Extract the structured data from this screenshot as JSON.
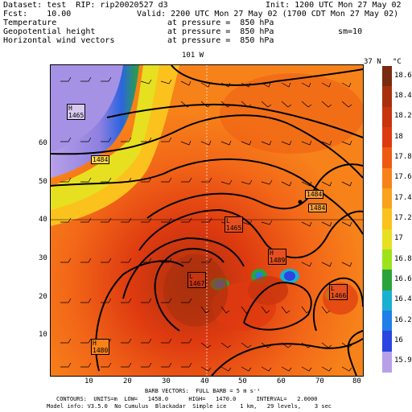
{
  "header": {
    "dataset": "Dataset: test  RIP: rip20020527 d3",
    "init": "Init: 1200 UTC Mon 27 May 02",
    "fcst": "Fcst:    10.00",
    "valid": "Valid: 2200 UTC Mon 27 May 02 (1700 CDT Mon 27 May 02)",
    "row1_label": "Temperature",
    "row1_at": "at pressure =  850 hPa",
    "row2_label": "Geopotential height",
    "row2_at": "at pressure =  850 hPa",
    "row2_sm": "sm=10",
    "row3_label": "Horizontal wind vectors",
    "row3_at": "at pressure =  850 hPa"
  },
  "map": {
    "top_label_lon": "101 W",
    "top_label_lat": "37 N",
    "x_ticks": [
      "10",
      "20",
      "30",
      "40",
      "50",
      "60",
      "70",
      "80"
    ],
    "y_ticks": [
      "10",
      "20",
      "30",
      "40",
      "50",
      "60"
    ],
    "height_labels": [
      {
        "text": "H\n1465"
      },
      {
        "text": "1484"
      },
      {
        "text": "1484"
      },
      {
        "text": "1484"
      },
      {
        "text": "L\n1465"
      },
      {
        "text": "H\n1489"
      },
      {
        "text": "L\n1467"
      },
      {
        "text": "L\n1466"
      },
      {
        "text": "H\n1480"
      }
    ]
  },
  "colorbar": {
    "unit": "°C",
    "labels": [
      "18.6",
      "18.4",
      "18.2",
      "18",
      "17.8",
      "17.6",
      "17.4",
      "17.2",
      "17",
      "16.8",
      "16.6",
      "16.4",
      "16.2",
      "16",
      "15.9"
    ],
    "colors": [
      "#7a2a10",
      "#a8300e",
      "#c8340e",
      "#de3a10",
      "#ee5a12",
      "#f7821a",
      "#f9a21c",
      "#fbc21e",
      "#e6e020",
      "#9ee21a",
      "#2aa43a",
      "#1ab0d0",
      "#1f7ee8",
      "#2c44e0",
      "#b7a0e8"
    ]
  },
  "footer": {
    "line1": "BARB VECTORS:  FULL BARB = 5 m s⁻¹",
    "line2": "CONTOURS:  UNITS=m  LOW=   1458.0      HIGH=   1470.0      INTERVAL=   2.0000",
    "line3": "Model info: V3.5.0  No Cumulus  Blackadar  Simple ice    1 km,   29 levels,    3 sec"
  }
}
